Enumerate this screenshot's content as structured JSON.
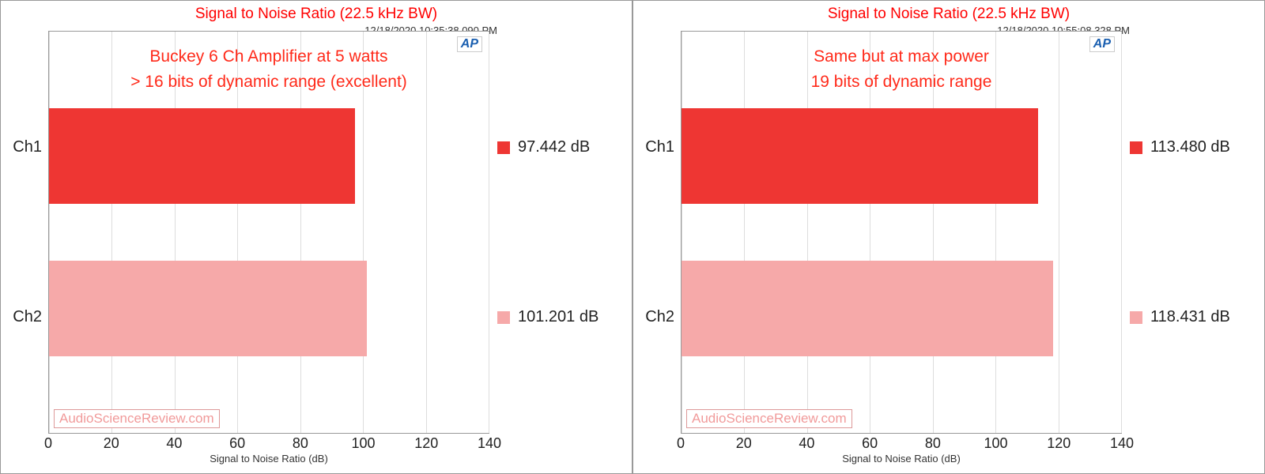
{
  "colors": {
    "title": "#ff0000",
    "annot": "#ff2a1a",
    "watermark": "#f19a9a",
    "ap_logo": "#1a5fb0",
    "grid": "#dddddd",
    "axis_text": "#222222"
  },
  "panels": [
    {
      "title": "Signal to Noise Ratio (22.5 kHz BW)",
      "timestamp": "12/18/2020 10:35:38.090 PM",
      "annotation_line1": "Buckey 6 Ch Amplifier at 5 watts",
      "annotation_line2": "> 16 bits of dynamic range (excellent)",
      "watermark": "AudioScienceReview.com",
      "ap": "AP",
      "xlabel": "Signal to Noise Ratio (dB)",
      "xlim": [
        0,
        140
      ],
      "xtick_step": 20,
      "xticks": [
        0,
        20,
        40,
        60,
        80,
        100,
        120,
        140
      ],
      "categories": [
        "Ch1",
        "Ch2"
      ],
      "bars": [
        {
          "label": "Ch1",
          "value": 97.442,
          "unit": "dB",
          "color": "#ee3633"
        },
        {
          "label": "Ch2",
          "value": 101.201,
          "unit": "dB",
          "color": "#f6a9a9"
        }
      ]
    },
    {
      "title": "Signal to Noise Ratio (22.5 kHz BW)",
      "timestamp": "12/18/2020 10:55:08.328 PM",
      "annotation_line1": "Same but at max power",
      "annotation_line2": "19 bits of dynamic range",
      "watermark": "AudioScienceReview.com",
      "ap": "AP",
      "xlabel": "Signal to Noise Ratio (dB)",
      "xlim": [
        0,
        140
      ],
      "xtick_step": 20,
      "xticks": [
        0,
        20,
        40,
        60,
        80,
        100,
        120,
        140
      ],
      "categories": [
        "Ch1",
        "Ch2"
      ],
      "bars": [
        {
          "label": "Ch1",
          "value": 113.48,
          "unit": "dB",
          "color": "#ee3633"
        },
        {
          "label": "Ch2",
          "value": 118.431,
          "unit": "dB",
          "color": "#f6a9a9"
        }
      ]
    }
  ]
}
